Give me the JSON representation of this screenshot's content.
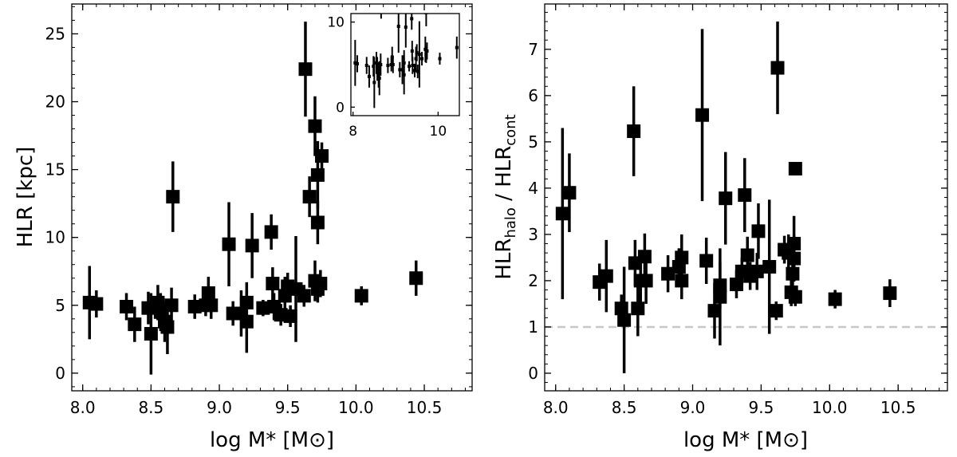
{
  "chart_data": [
    {
      "type": "scatter",
      "xlabel": "log M* [M⊙]",
      "ylabel": "HLR [kpc]",
      "xlim": [
        7.92,
        10.85
      ],
      "ylim": [
        -1.3,
        27.2
      ],
      "xticks": [
        "8.0",
        "8.5",
        "9.0",
        "9.5",
        "10.0",
        "10.5"
      ],
      "yticks": [
        "0",
        "5",
        "10",
        "15",
        "20",
        "25"
      ],
      "marker": "square",
      "color": "#000000",
      "points": [
        [
          8.05,
          5.2,
          2.7
        ],
        [
          8.1,
          5.1,
          1.0
        ],
        [
          8.32,
          4.9,
          1.0
        ],
        [
          8.38,
          3.6,
          1.3
        ],
        [
          8.48,
          4.8,
          1.2
        ],
        [
          8.5,
          2.9,
          3.0
        ],
        [
          8.55,
          5.2,
          1.3
        ],
        [
          8.57,
          4.5,
          1.4
        ],
        [
          8.6,
          3.8,
          1.5
        ],
        [
          8.62,
          3.4,
          2.0
        ],
        [
          8.65,
          5.0,
          1.3
        ],
        [
          8.66,
          13.0,
          2.6
        ],
        [
          8.82,
          4.9,
          0.9
        ],
        [
          8.9,
          5.0,
          0.8
        ],
        [
          8.92,
          5.9,
          1.2
        ],
        [
          8.94,
          5.0,
          1.0
        ],
        [
          9.07,
          9.5,
          3.1
        ],
        [
          9.1,
          4.4,
          0.9
        ],
        [
          9.16,
          4.4,
          1.7
        ],
        [
          9.2,
          5.2,
          1.5
        ],
        [
          9.2,
          3.8,
          2.3
        ],
        [
          9.24,
          9.4,
          2.4
        ],
        [
          9.32,
          4.8,
          0.6
        ],
        [
          9.38,
          10.4,
          1.3
        ],
        [
          9.39,
          6.6,
          1.2
        ],
        [
          9.4,
          4.9,
          1.0
        ],
        [
          9.45,
          4.3,
          0.8
        ],
        [
          9.48,
          5.7,
          1.4
        ],
        [
          9.5,
          6.4,
          1.0
        ],
        [
          9.52,
          4.2,
          0.8
        ],
        [
          9.56,
          6.2,
          3.9
        ],
        [
          9.63,
          22.4,
          3.5
        ],
        [
          9.62,
          5.7,
          0.8
        ],
        [
          9.66,
          13.0,
          1.5
        ],
        [
          9.7,
          18.2,
          2.2
        ],
        [
          9.72,
          14.6,
          2.5
        ],
        [
          9.72,
          11.1,
          1.6
        ],
        [
          9.75,
          16.0,
          1.0
        ],
        [
          9.7,
          6.8,
          1.5
        ],
        [
          9.72,
          6.2,
          1.0
        ],
        [
          9.74,
          6.6,
          1.0
        ],
        [
          10.04,
          5.7,
          0.7
        ],
        [
          10.44,
          7.0,
          1.3
        ]
      ],
      "inset": {
        "xlim": [
          7.95,
          10.5
        ],
        "ylim": [
          -1,
          11
        ],
        "xticks": [
          "8",
          "10"
        ],
        "yticks": [
          "0",
          "10"
        ]
      }
    },
    {
      "type": "scatter",
      "xlabel": "log M* [M⊙]",
      "ylabel": "HLR_halo / HLR_cont",
      "ylabel_parts": {
        "main1": "HLR",
        "sub1": "halo",
        "mid": " / HLR",
        "sub2": "cont"
      },
      "xlim": [
        7.92,
        10.86
      ],
      "ylim": [
        -0.38,
        7.98
      ],
      "xticks": [
        "8.0",
        "8.5",
        "9.0",
        "9.5",
        "10.0",
        "10.5"
      ],
      "yticks": [
        "0",
        "1",
        "2",
        "3",
        "4",
        "5",
        "6",
        "7"
      ],
      "reference_line": {
        "y": 1,
        "style": "dashed",
        "color": "#c8c8c8"
      },
      "marker": "square",
      "color": "#000000",
      "points": [
        [
          8.05,
          3.45,
          1.85
        ],
        [
          8.1,
          3.9,
          0.85
        ],
        [
          8.32,
          1.97,
          0.4
        ],
        [
          8.37,
          2.1,
          0.78
        ],
        [
          8.48,
          1.4,
          0.3
        ],
        [
          8.5,
          1.15,
          1.15
        ],
        [
          8.57,
          5.23,
          0.97
        ],
        [
          8.58,
          2.38,
          0.5
        ],
        [
          8.6,
          1.4,
          0.6
        ],
        [
          8.62,
          2.0,
          0.5
        ],
        [
          8.65,
          2.52,
          0.5
        ],
        [
          8.66,
          2.0,
          0.5
        ],
        [
          8.82,
          2.15,
          0.4
        ],
        [
          8.9,
          2.3,
          0.4
        ],
        [
          8.92,
          2.5,
          0.5
        ],
        [
          8.92,
          2.0,
          0.4
        ],
        [
          9.07,
          5.58,
          1.86
        ],
        [
          9.1,
          2.43,
          0.5
        ],
        [
          9.16,
          1.35,
          0.6
        ],
        [
          9.2,
          1.9,
          0.5
        ],
        [
          9.2,
          1.65,
          1.05
        ],
        [
          9.24,
          3.78,
          1.0
        ],
        [
          9.32,
          1.92,
          0.3
        ],
        [
          9.38,
          3.85,
          0.8
        ],
        [
          9.36,
          2.2,
          0.3
        ],
        [
          9.4,
          2.55,
          0.4
        ],
        [
          9.42,
          2.1,
          0.3
        ],
        [
          9.48,
          3.07,
          0.6
        ],
        [
          9.47,
          2.2,
          0.4
        ],
        [
          9.56,
          2.3,
          1.45
        ],
        [
          9.62,
          6.6,
          1.0
        ],
        [
          9.61,
          1.35,
          0.2
        ],
        [
          9.67,
          2.67,
          0.3
        ],
        [
          9.7,
          2.6,
          0.4
        ],
        [
          9.74,
          2.8,
          0.6
        ],
        [
          9.73,
          2.15,
          0.4
        ],
        [
          9.74,
          2.48,
          0.5
        ],
        [
          9.72,
          1.75,
          0.3
        ],
        [
          9.75,
          1.65,
          0.2
        ],
        [
          9.75,
          4.42,
          0.0
        ],
        [
          10.04,
          1.6,
          0.2
        ],
        [
          10.44,
          1.73,
          0.3
        ]
      ]
    }
  ]
}
